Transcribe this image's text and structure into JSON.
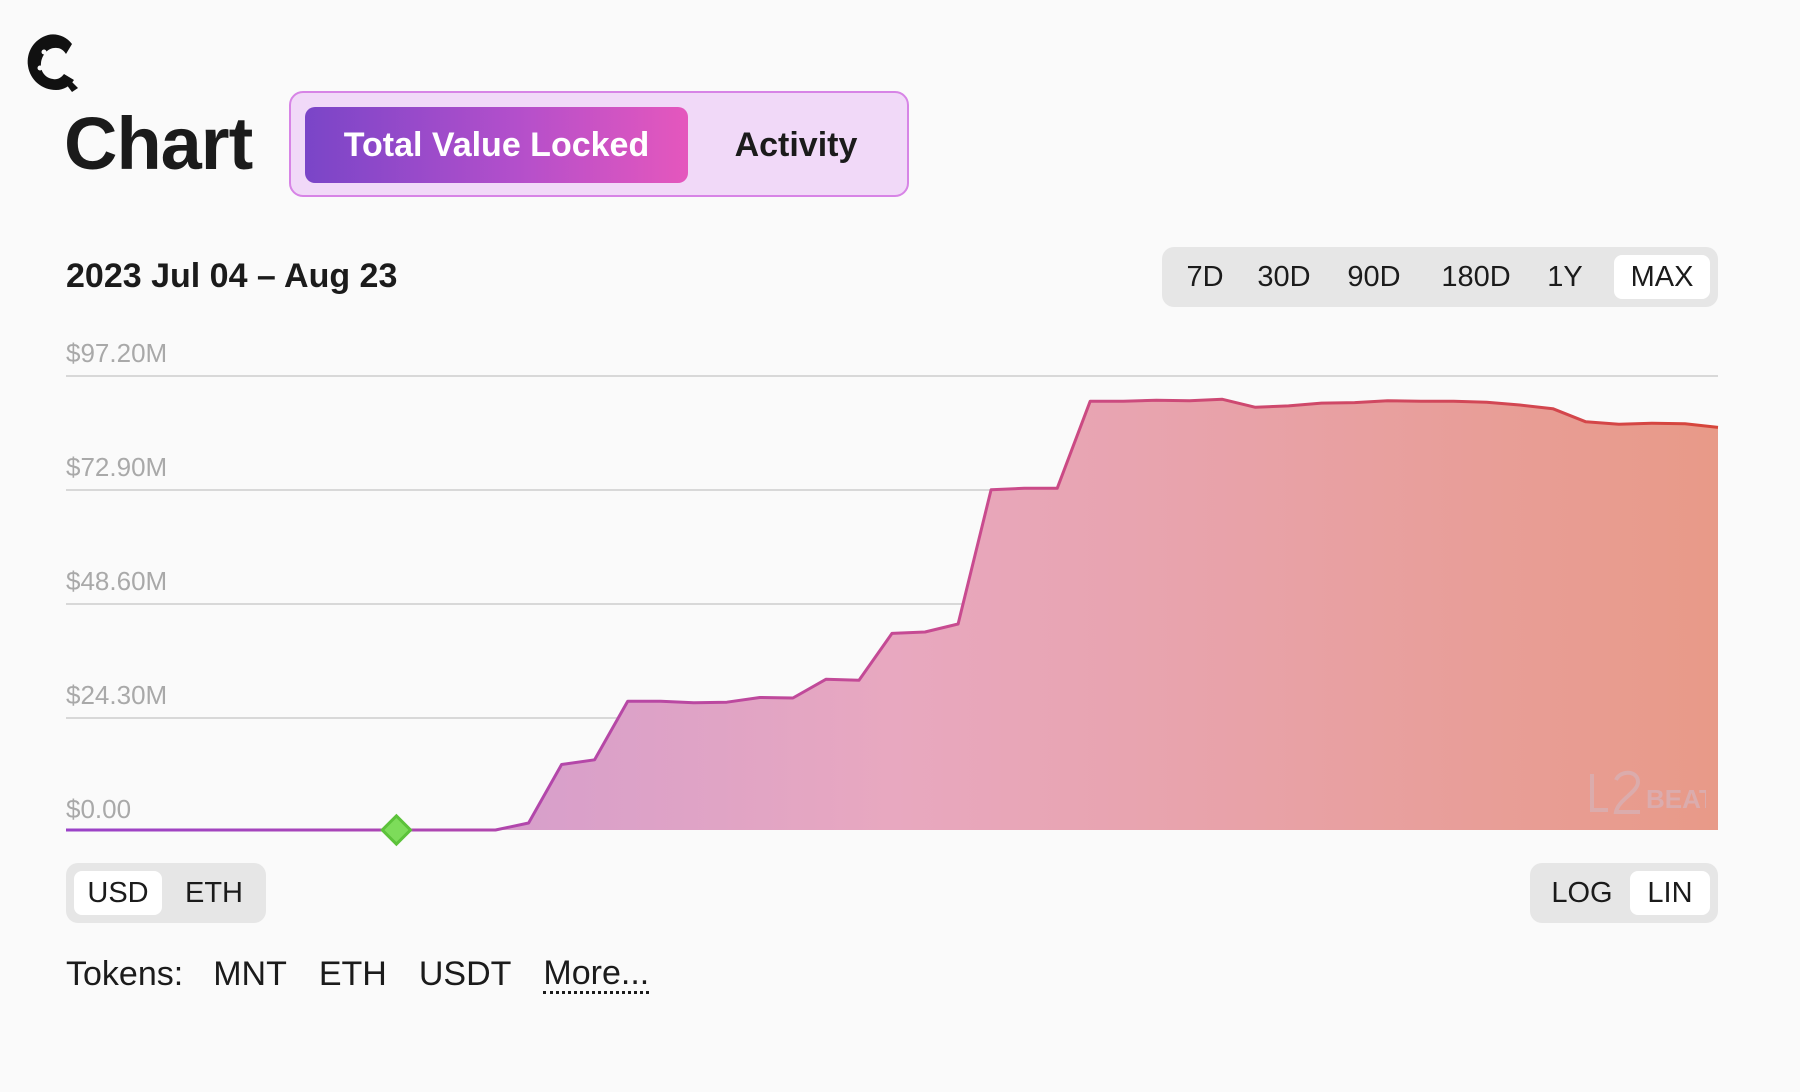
{
  "header": {
    "title": "Chart",
    "tabs": [
      {
        "label": "Total Value Locked",
        "active": true
      },
      {
        "label": "Activity",
        "active": false
      }
    ]
  },
  "toolbar": {
    "date_range": "2023 Jul 04 – Aug 23",
    "ranges": [
      "7D",
      "30D",
      "90D",
      "180D",
      "1Y",
      "MAX"
    ],
    "selected_range": "MAX"
  },
  "chart_data": {
    "type": "area",
    "y_ticks": [
      "$97.20M",
      "$72.90M",
      "$48.60M",
      "$24.30M",
      "$0.00"
    ],
    "ylim": [
      0,
      97.2
    ],
    "y_unit": "$M",
    "x_range": [
      "2023-07-04",
      "2023-08-23"
    ],
    "x": [
      "07-04",
      "07-05",
      "07-06",
      "07-07",
      "07-08",
      "07-09",
      "07-10",
      "07-11",
      "07-12",
      "07-13",
      "07-14",
      "07-15",
      "07-16",
      "07-17",
      "07-18",
      "07-19",
      "07-20",
      "07-21",
      "07-22",
      "07-23",
      "07-24",
      "07-25",
      "07-26",
      "07-27",
      "07-28",
      "07-29",
      "07-30",
      "07-31",
      "08-01",
      "08-02",
      "08-03",
      "08-04",
      "08-05",
      "08-06",
      "08-07",
      "08-08",
      "08-09",
      "08-10",
      "08-11",
      "08-12",
      "08-13",
      "08-14",
      "08-15",
      "08-16",
      "08-17",
      "08-18",
      "08-19",
      "08-20",
      "08-21",
      "08-22",
      "08-23"
    ],
    "values": [
      0,
      0,
      0,
      0,
      0,
      0,
      0,
      0,
      0,
      0,
      0,
      0,
      0,
      0,
      1.5,
      14,
      15,
      27.5,
      27.5,
      27.2,
      27.3,
      28.3,
      28.2,
      32.2,
      32.0,
      42.0,
      42.3,
      44.0,
      72.7,
      73.0,
      73.0,
      91.6,
      91.6,
      91.8,
      91.7,
      92.0,
      90.3,
      90.6,
      91.2,
      91.3,
      91.7,
      91.6,
      91.6,
      91.4,
      90.8,
      90.0,
      87.2,
      86.7,
      86.9,
      86.8,
      86.0
    ],
    "marker": {
      "x": "07-14",
      "value": 0,
      "color": "#7ddc5a"
    },
    "gradient": {
      "start": "#c394d8",
      "mid": "#e8a8c0",
      "end": "#e89a88"
    },
    "line_gradient": {
      "start": "#9a42c8",
      "mid": "#c94b8f",
      "end": "#d6453a"
    },
    "grid": true,
    "legend": "none"
  },
  "bottom_controls": {
    "currency": [
      "USD",
      "ETH"
    ],
    "selected_currency": "USD",
    "scale": [
      "LOG",
      "LIN"
    ],
    "selected_scale": "LIN"
  },
  "tokens": {
    "label": "Tokens:",
    "items": [
      "MNT",
      "ETH",
      "USDT"
    ],
    "more": "More..."
  },
  "icons": {
    "logo": "site-logo-icon",
    "watermark": "l2beat-watermark-icon"
  }
}
